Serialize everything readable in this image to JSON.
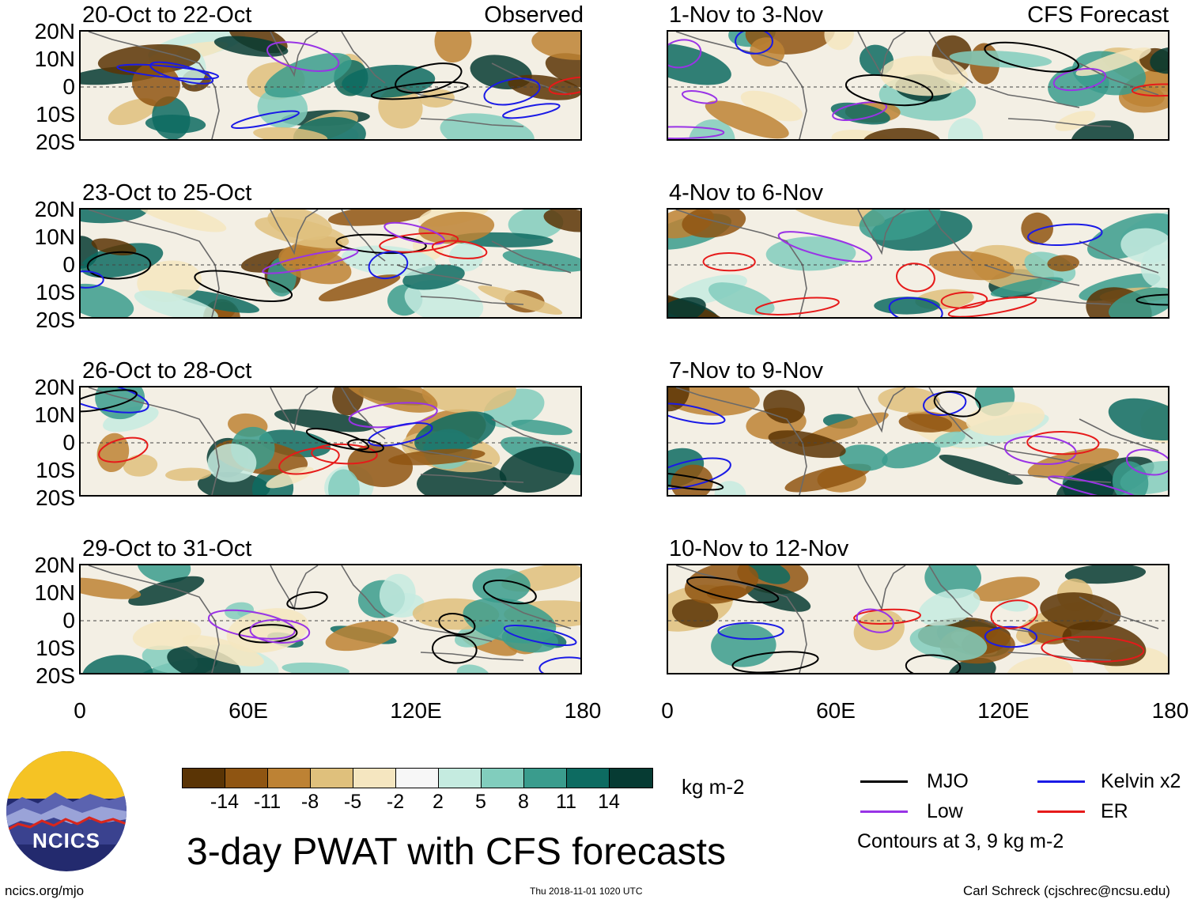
{
  "panels": {
    "left": [
      {
        "title": "20-Oct to 22-Oct",
        "label": "Observed"
      },
      {
        "title": "23-Oct to 25-Oct",
        "label": ""
      },
      {
        "title": "26-Oct to 28-Oct",
        "label": ""
      },
      {
        "title": "29-Oct to 31-Oct",
        "label": ""
      }
    ],
    "right": [
      {
        "title": "1-Nov to 3-Nov",
        "label": "CFS Forecast"
      },
      {
        "title": "4-Nov to 6-Nov",
        "label": ""
      },
      {
        "title": "7-Nov to 9-Nov",
        "label": ""
      },
      {
        "title": "10-Nov to 12-Nov",
        "label": ""
      }
    ]
  },
  "axes": {
    "y_ticks": [
      "20N",
      "10N",
      "0",
      "10S",
      "20S"
    ],
    "x_ticks": [
      "0",
      "60E",
      "120E",
      "180"
    ],
    "lat_range": [
      -20,
      20
    ],
    "lon_range": [
      0,
      180
    ]
  },
  "colorbar": {
    "colors": [
      "#5a3405",
      "#8f5512",
      "#bd8234",
      "#dfc07c",
      "#f5e6c0",
      "#f7f7f7",
      "#c5ebe0",
      "#81cdbd",
      "#3a9c8d",
      "#0d6b61",
      "#063b33"
    ],
    "labels": [
      "-14",
      "-11",
      "-8",
      "-5",
      "-2",
      "2",
      "5",
      "8",
      "11",
      "14"
    ],
    "units": "kg m-2"
  },
  "legend": {
    "items": [
      {
        "name": "MJO",
        "color": "#000000"
      },
      {
        "name": "Kelvin x2",
        "color": "#1a1ae6"
      },
      {
        "name": "Low",
        "color": "#9933e6"
      },
      {
        "name": "ER",
        "color": "#e61a1a"
      }
    ],
    "note": "Contours at 3, 9 kg m-2"
  },
  "title": "3-day PWAT with CFS forecasts",
  "footer": {
    "left": "ncics.org/mjo",
    "center": "Thu 2018-11-01 1020 UTC",
    "right": "Carl Schreck (cjschrec@ncsu.edu)"
  },
  "logo": {
    "text": "NCICS"
  }
}
